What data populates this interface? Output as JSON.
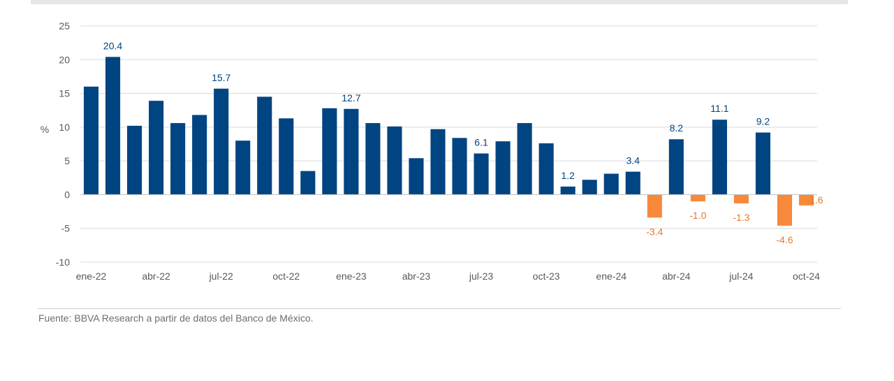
{
  "chart_data": {
    "type": "bar",
    "ylabel": "%",
    "ylim": [
      -10,
      25
    ],
    "yticks": [
      25,
      20,
      15,
      10,
      5,
      0,
      -5,
      -10
    ],
    "grid": true,
    "legend": "none",
    "x": [
      "ene-22",
      "feb-22",
      "mar-22",
      "abr-22",
      "may-22",
      "jun-22",
      "jul-22",
      "ago-22",
      "sep-22",
      "oct-22",
      "nov-22",
      "dic-22",
      "ene-23",
      "feb-23",
      "mar-23",
      "abr-23",
      "may-23",
      "jun-23",
      "jul-23",
      "ago-23",
      "sep-23",
      "oct-23",
      "nov-23",
      "dic-23",
      "ene-24",
      "feb-24",
      "mar-24",
      "abr-24",
      "may-24",
      "jun-24",
      "jul-24",
      "ago-24",
      "sep-24",
      "oct-24"
    ],
    "values": [
      16.0,
      20.4,
      10.2,
      13.9,
      10.6,
      11.8,
      15.7,
      8.0,
      14.5,
      11.3,
      3.5,
      12.8,
      12.7,
      10.6,
      10.1,
      5.4,
      9.7,
      8.4,
      6.1,
      7.9,
      10.6,
      7.6,
      1.2,
      2.2,
      3.1,
      3.4,
      -3.4,
      8.2,
      -1.0,
      11.1,
      -1.3,
      9.2,
      -4.6,
      -1.6
    ],
    "tick_labels": [
      {
        "index": 0,
        "label": "ene-22"
      },
      {
        "index": 3,
        "label": "abr-22"
      },
      {
        "index": 6,
        "label": "jul-22"
      },
      {
        "index": 9,
        "label": "oct-22"
      },
      {
        "index": 12,
        "label": "ene-23"
      },
      {
        "index": 15,
        "label": "abr-23"
      },
      {
        "index": 18,
        "label": "jul-23"
      },
      {
        "index": 21,
        "label": "oct-23"
      },
      {
        "index": 24,
        "label": "ene-24"
      },
      {
        "index": 27,
        "label": "abr-24"
      },
      {
        "index": 30,
        "label": "jul-24"
      },
      {
        "index": 33,
        "label": "oct-24"
      }
    ],
    "data_labels": [
      {
        "index": 1,
        "text": "20.4"
      },
      {
        "index": 6,
        "text": "15.7"
      },
      {
        "index": 12,
        "text": "12.7"
      },
      {
        "index": 18,
        "text": "6.1"
      },
      {
        "index": 22,
        "text": "1.2"
      },
      {
        "index": 25,
        "text": "3.4"
      },
      {
        "index": 26,
        "text": "-3.4"
      },
      {
        "index": 27,
        "text": "8.2"
      },
      {
        "index": 28,
        "text": "-1.0"
      },
      {
        "index": 29,
        "text": "11.1"
      },
      {
        "index": 30,
        "text": "-1.3"
      },
      {
        "index": 31,
        "text": "9.2"
      },
      {
        "index": 32,
        "text": "-4.6"
      },
      {
        "index": 33,
        "text": "-1.6"
      }
    ],
    "colors": {
      "positive": "#004481",
      "negative": "#F7893B",
      "positive_label": "#004481",
      "negative_label": "#E8782A",
      "grid": "#d9d9d9"
    }
  },
  "source": "Fuente: BBVA Research a partir de datos del Banco de México."
}
